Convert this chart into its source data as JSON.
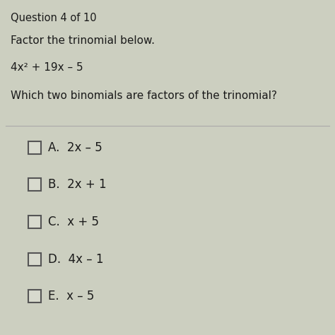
{
  "title_line": "Question 4 of 10",
  "instruction": "Factor the trinomial below.",
  "equation": "4x² + 19x – 5",
  "question": "Which two binomials are factors of the trinomial?",
  "options": [
    {
      "letter": "A.",
      "text": "2x – 5"
    },
    {
      "letter": "B.",
      "text": "2x + 1"
    },
    {
      "letter": "C.",
      "text": "x + 5"
    },
    {
      "letter": "D.",
      "text": "4x – 1"
    },
    {
      "letter": "E.",
      "text": "x – 5"
    }
  ],
  "bg_color": "#cccfc0",
  "text_color": "#1a1a1a",
  "divider_color": "#aaaaaa",
  "checkbox_edge_color": "#555555",
  "checkbox_face_color": "#d8dace",
  "title_fontsize": 10.5,
  "body_fontsize": 11.0,
  "option_fontsize": 12.0,
  "figsize": [
    4.74,
    4.74
  ],
  "dpi": 100
}
